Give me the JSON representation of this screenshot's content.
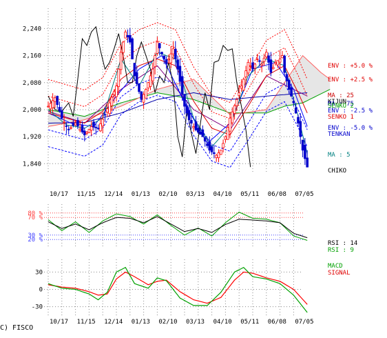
{
  "footer_text": "C) FISCO",
  "colors": {
    "candle_up": "#ff0000",
    "candle_down": "#0000cc",
    "env_upper": "#ff0000",
    "env_lower": "#0000ff",
    "ma25": "#dd0000",
    "ma5": "#008080",
    "chiko": "#000000",
    "ichimoku_cloud": "#c8c8c8",
    "senko2": "#00a000",
    "rsi14": "#000000",
    "rsi9": "#00a000",
    "macd": "#00a000",
    "signal": "#ff0000",
    "rsi_upper_guides": "#ff4040",
    "rsi_lower_guides": "#4040ff"
  },
  "chart_data": [
    {
      "type": "candlestick",
      "x_tick_labels": [
        "10/17",
        "11/15",
        "12/14",
        "01/13",
        "02/10",
        "03/13",
        "04/10",
        "05/11",
        "06/08",
        "07/05"
      ],
      "y_tick_labels": [
        "2,240",
        "2,160",
        "2,080",
        "2,000",
        "1,920",
        "1,840"
      ],
      "y_ticks": [
        2240,
        2160,
        2080,
        2000,
        1920,
        1840
      ],
      "ylim": [
        1810,
        2300
      ],
      "grid": true,
      "legend_labels": {
        "env_up5": "ENV : +5.0 %",
        "env_up25": "ENV : +2.5 %",
        "ma25": "MA : 25",
        "kijun": "KIJUN",
        "ma75": "MA : 75",
        "senko2": "SENKO 2",
        "senko1": "SENKO 1",
        "env_dn25": "ENV : -2.5 %",
        "env_dn5": "ENV : -5.0 %",
        "tenkan": "TENKAN",
        "ma5": "MA : 5",
        "chiko": "CHIKO"
      },
      "price_path": [
        [
          0,
          2010
        ],
        [
          3,
          2035
        ],
        [
          6,
          1975
        ],
        [
          9,
          1940
        ],
        [
          12,
          1960
        ],
        [
          16,
          1925
        ],
        [
          19,
          1950
        ],
        [
          22,
          1945
        ],
        [
          25,
          1985
        ],
        [
          27,
          2020
        ],
        [
          30,
          2070
        ],
        [
          32,
          2170
        ],
        [
          34,
          2230
        ],
        [
          36,
          2200
        ],
        [
          38,
          2100
        ],
        [
          41,
          2030
        ],
        [
          43,
          2060
        ],
        [
          46,
          2120
        ],
        [
          48,
          2200
        ],
        [
          50,
          2165
        ],
        [
          52,
          2135
        ],
        [
          55,
          2180
        ],
        [
          57,
          2120
        ],
        [
          60,
          2010
        ],
        [
          62,
          1970
        ],
        [
          65,
          1940
        ],
        [
          68,
          1920
        ],
        [
          71,
          1880
        ],
        [
          74,
          1865
        ],
        [
          76,
          1880
        ],
        [
          78,
          1920
        ],
        [
          80,
          1975
        ],
        [
          83,
          2030
        ],
        [
          86,
          2090
        ],
        [
          88,
          2140
        ],
        [
          90,
          2120
        ],
        [
          92,
          2150
        ],
        [
          94,
          2135
        ],
        [
          96,
          2170
        ],
        [
          98,
          2110
        ],
        [
          100,
          2140
        ],
        [
          102,
          2150
        ],
        [
          103,
          2160
        ],
        [
          104,
          2110
        ],
        [
          106,
          2060
        ],
        [
          108,
          2020
        ],
        [
          110,
          1960
        ],
        [
          112,
          1880
        ],
        [
          114,
          1830
        ]
      ],
      "chiko_path": [
        [
          0,
          2040
        ],
        [
          3,
          2000
        ],
        [
          6,
          1995
        ],
        [
          9,
          2020
        ],
        [
          11,
          1980
        ],
        [
          13,
          2090
        ],
        [
          15,
          2210
        ],
        [
          17,
          2190
        ],
        [
          19,
          2230
        ],
        [
          21,
          2245
        ],
        [
          23,
          2175
        ],
        [
          25,
          2120
        ],
        [
          27,
          2140
        ],
        [
          29,
          2180
        ],
        [
          31,
          2225
        ],
        [
          33,
          2160
        ],
        [
          35,
          2080
        ],
        [
          37,
          2080
        ],
        [
          39,
          2160
        ],
        [
          41,
          2200
        ],
        [
          43,
          2160
        ],
        [
          45,
          2120
        ],
        [
          47,
          2050
        ],
        [
          49,
          2100
        ],
        [
          51,
          2080
        ],
        [
          53,
          2140
        ],
        [
          55,
          2075
        ],
        [
          57,
          1920
        ],
        [
          59,
          1860
        ],
        [
          61,
          2000
        ],
        [
          63,
          1930
        ],
        [
          65,
          1870
        ],
        [
          67,
          1960
        ],
        [
          69,
          2050
        ],
        [
          71,
          2000
        ],
        [
          73,
          2140
        ],
        [
          75,
          2145
        ],
        [
          77,
          2190
        ],
        [
          79,
          2175
        ],
        [
          81,
          2180
        ],
        [
          83,
          2080
        ],
        [
          85,
          2010
        ],
        [
          87,
          1940
        ],
        [
          89,
          1830
        ]
      ],
      "ma25_path": [
        [
          0,
          1990
        ],
        [
          8,
          1975
        ],
        [
          16,
          1960
        ],
        [
          24,
          1995
        ],
        [
          32,
          2090
        ],
        [
          40,
          2130
        ],
        [
          48,
          2150
        ],
        [
          56,
          2130
        ],
        [
          64,
          2025
        ],
        [
          72,
          1945
        ],
        [
          80,
          1925
        ],
        [
          88,
          2010
        ],
        [
          96,
          2100
        ],
        [
          104,
          2130
        ],
        [
          110,
          2050
        ],
        [
          114,
          1990
        ]
      ],
      "ma75_path": [
        [
          0,
          1960
        ],
        [
          16,
          1962
        ],
        [
          32,
          1990
        ],
        [
          48,
          2030
        ],
        [
          64,
          2050
        ],
        [
          80,
          2030
        ],
        [
          96,
          2040
        ],
        [
          114,
          2050
        ]
      ],
      "ma5_path": [
        [
          0,
          2000
        ],
        [
          8,
          1955
        ],
        [
          16,
          1945
        ],
        [
          24,
          1975
        ],
        [
          32,
          2150
        ],
        [
          40,
          2070
        ],
        [
          48,
          2170
        ],
        [
          56,
          2150
        ],
        [
          64,
          1975
        ],
        [
          72,
          1890
        ],
        [
          80,
          1950
        ],
        [
          88,
          2100
        ],
        [
          96,
          2150
        ],
        [
          104,
          2130
        ],
        [
          110,
          1980
        ],
        [
          114,
          1870
        ]
      ],
      "tenkan_path": [
        [
          0,
          1990
        ],
        [
          10,
          1960
        ],
        [
          20,
          1950
        ],
        [
          30,
          2040
        ],
        [
          40,
          2120
        ],
        [
          50,
          2160
        ],
        [
          60,
          2020
        ],
        [
          70,
          1900
        ],
        [
          80,
          1960
        ],
        [
          90,
          2120
        ],
        [
          100,
          2140
        ],
        [
          108,
          2060
        ],
        [
          114,
          1950
        ]
      ],
      "kijun_path": [
        [
          0,
          1995
        ],
        [
          16,
          1960
        ],
        [
          32,
          2060
        ],
        [
          48,
          2130
        ],
        [
          64,
          2000
        ],
        [
          80,
          1940
        ],
        [
          96,
          2100
        ],
        [
          114,
          2040
        ]
      ],
      "senko1_path": [
        [
          0,
          1950
        ],
        [
          16,
          1970
        ],
        [
          32,
          2010
        ],
        [
          48,
          2060
        ],
        [
          64,
          2090
        ],
        [
          80,
          1985
        ],
        [
          96,
          2000
        ],
        [
          104,
          2080
        ],
        [
          112,
          2160
        ],
        [
          120,
          2110
        ],
        [
          124,
          2090
        ]
      ],
      "senko2_path": [
        [
          0,
          2000
        ],
        [
          16,
          1980
        ],
        [
          32,
          2020
        ],
        [
          48,
          2050
        ],
        [
          64,
          2030
        ],
        [
          80,
          1990
        ],
        [
          96,
          1990
        ],
        [
          104,
          2010
        ],
        [
          112,
          2020
        ],
        [
          118,
          2040
        ],
        [
          124,
          2060
        ]
      ]
    },
    {
      "type": "line",
      "y_tick_labels": [
        "80 %",
        "70 %",
        "30 %",
        "20 %"
      ],
      "guides": [
        80,
        70,
        30,
        20
      ],
      "ylim": [
        0,
        100
      ],
      "series": [
        {
          "name": "RSI : 14",
          "values": [
            [
              0,
              60
            ],
            [
              6,
              45
            ],
            [
              12,
              55
            ],
            [
              18,
              42
            ],
            [
              24,
              58
            ],
            [
              30,
              70
            ],
            [
              36,
              68
            ],
            [
              42,
              58
            ],
            [
              48,
              72
            ],
            [
              54,
              55
            ],
            [
              60,
              38
            ],
            [
              66,
              45
            ],
            [
              72,
              36
            ],
            [
              78,
              54
            ],
            [
              84,
              66
            ],
            [
              90,
              64
            ],
            [
              96,
              62
            ],
            [
              102,
              58
            ],
            [
              108,
              34
            ],
            [
              114,
              24
            ]
          ]
        },
        {
          "name": "RSI : 9",
          "values": [
            [
              0,
              65
            ],
            [
              6,
              40
            ],
            [
              12,
              60
            ],
            [
              18,
              36
            ],
            [
              24,
              62
            ],
            [
              30,
              78
            ],
            [
              36,
              72
            ],
            [
              42,
              55
            ],
            [
              48,
              76
            ],
            [
              54,
              52
            ],
            [
              60,
              30
            ],
            [
              66,
              46
            ],
            [
              72,
              28
            ],
            [
              78,
              58
            ],
            [
              84,
              82
            ],
            [
              90,
              68
            ],
            [
              96,
              66
            ],
            [
              102,
              58
            ],
            [
              108,
              28
            ],
            [
              114,
              18
            ]
          ]
        }
      ]
    },
    {
      "type": "line",
      "y_tick_labels": [
        "30",
        "0",
        "-30"
      ],
      "y_ticks": [
        30,
        0,
        -30
      ],
      "ylim": [
        -46,
        52
      ],
      "series": [
        {
          "name": "MACD",
          "values": [
            [
              0,
              10
            ],
            [
              6,
              2
            ],
            [
              12,
              0
            ],
            [
              18,
              -8
            ],
            [
              22,
              -18
            ],
            [
              26,
              -5
            ],
            [
              30,
              30
            ],
            [
              34,
              38
            ],
            [
              38,
              10
            ],
            [
              44,
              2
            ],
            [
              48,
              20
            ],
            [
              52,
              15
            ],
            [
              58,
              -15
            ],
            [
              64,
              -28
            ],
            [
              70,
              -28
            ],
            [
              76,
              -5
            ],
            [
              82,
              30
            ],
            [
              86,
              38
            ],
            [
              90,
              22
            ],
            [
              96,
              18
            ],
            [
              102,
              10
            ],
            [
              108,
              -10
            ],
            [
              114,
              -40
            ]
          ]
        },
        {
          "name": "SIGNAL",
          "values": [
            [
              0,
              8
            ],
            [
              6,
              4
            ],
            [
              12,
              2
            ],
            [
              18,
              -4
            ],
            [
              22,
              -10
            ],
            [
              26,
              -8
            ],
            [
              30,
              18
            ],
            [
              34,
              30
            ],
            [
              38,
              22
            ],
            [
              44,
              8
            ],
            [
              48,
              14
            ],
            [
              52,
              16
            ],
            [
              58,
              -4
            ],
            [
              64,
              -18
            ],
            [
              70,
              -24
            ],
            [
              76,
              -14
            ],
            [
              82,
              16
            ],
            [
              86,
              30
            ],
            [
              90,
              28
            ],
            [
              96,
              20
            ],
            [
              102,
              14
            ],
            [
              108,
              0
            ],
            [
              114,
              -26
            ]
          ]
        }
      ]
    }
  ]
}
